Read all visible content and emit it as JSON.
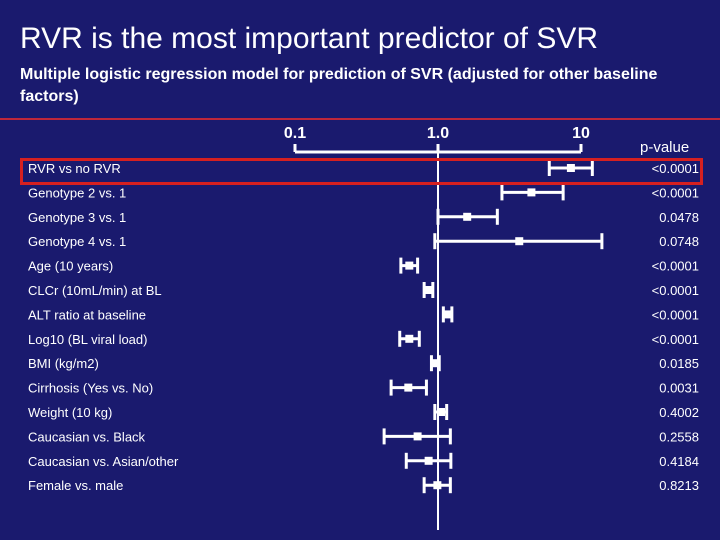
{
  "header": {
    "title": "RVR is the most important predictor of SVR",
    "subtitle": "Multiple logistic regression model for prediction of SVR (adjusted for other baseline factors)"
  },
  "colors": {
    "background": "#1a1a6e",
    "text": "#ffffff",
    "accent_rule": "#c0273a",
    "highlight_box": "#d62020"
  },
  "pvalue_header": "p-value",
  "chart_data": {
    "type": "forest",
    "xscale": "log",
    "xticks": [
      0.1,
      1.0,
      10
    ],
    "xtick_labels": [
      "0.1",
      "1.0",
      "10"
    ],
    "xlim": [
      0.1,
      10
    ],
    "reference_line": 1.0,
    "highlighted_row": 0,
    "rows": [
      {
        "label": "RVR vs no RVR",
        "or": 8.5,
        "lo": 6.0,
        "hi": 12.0,
        "p": "<0.0001"
      },
      {
        "label": "Genotype 2 vs. 1",
        "or": 4.5,
        "lo": 2.8,
        "hi": 7.5,
        "p": "<0.0001"
      },
      {
        "label": "Genotype 3 vs. 1",
        "or": 1.6,
        "lo": 1.0,
        "hi": 2.6,
        "p": "0.0478"
      },
      {
        "label": "Genotype 4 vs. 1",
        "or": 3.7,
        "lo": 0.95,
        "hi": 14.0,
        "p": "0.0748"
      },
      {
        "label": "Age (10 years)",
        "or": 0.63,
        "lo": 0.55,
        "hi": 0.72,
        "p": "<0.0001"
      },
      {
        "label": "CLCr (10mL/min) at BL",
        "or": 0.86,
        "lo": 0.8,
        "hi": 0.92,
        "p": "<0.0001"
      },
      {
        "label": "ALT ratio at baseline",
        "or": 1.17,
        "lo": 1.09,
        "hi": 1.25,
        "p": "<0.0001"
      },
      {
        "label": "Log10 (BL viral load)",
        "or": 0.63,
        "lo": 0.54,
        "hi": 0.74,
        "p": "<0.0001"
      },
      {
        "label": "BMI (kg/m2)",
        "or": 0.96,
        "lo": 0.9,
        "hi": 1.02,
        "p": "0.0185"
      },
      {
        "label": "Cirrhosis (Yes vs. No)",
        "or": 0.62,
        "lo": 0.47,
        "hi": 0.83,
        "p": "0.0031"
      },
      {
        "label": "Weight (10 kg)",
        "or": 1.05,
        "lo": 0.95,
        "hi": 1.15,
        "p": "0.4002"
      },
      {
        "label": "Caucasian vs. Black",
        "or": 0.72,
        "lo": 0.42,
        "hi": 1.22,
        "p": "0.2558"
      },
      {
        "label": "Caucasian vs. Asian/other",
        "or": 0.86,
        "lo": 0.6,
        "hi": 1.23,
        "p": "0.4184"
      },
      {
        "label": "Female vs. male",
        "or": 0.99,
        "lo": 0.8,
        "hi": 1.22,
        "p": "0.8213"
      }
    ]
  }
}
